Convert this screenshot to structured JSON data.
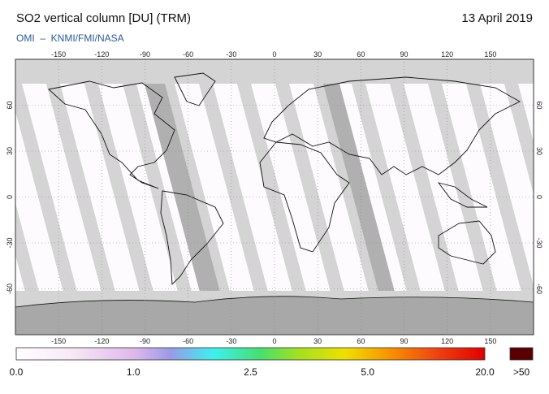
{
  "header": {
    "title": "SO2 vertical column [DU] (TRM)",
    "date": "13 April 2019",
    "source": "OMI  –  KNMI/FMI/NASA"
  },
  "map": {
    "longitude_ticks": [
      -150,
      -120,
      -90,
      -60,
      -30,
      0,
      30,
      60,
      90,
      120,
      150
    ],
    "latitude_ticks": [
      60,
      30,
      0,
      -30,
      -60
    ]
  },
  "colorbar": {
    "labels": [
      "0.0",
      "1.0",
      "2.5",
      "5.0",
      "20.0"
    ],
    "overflow_label": ">50"
  }
}
